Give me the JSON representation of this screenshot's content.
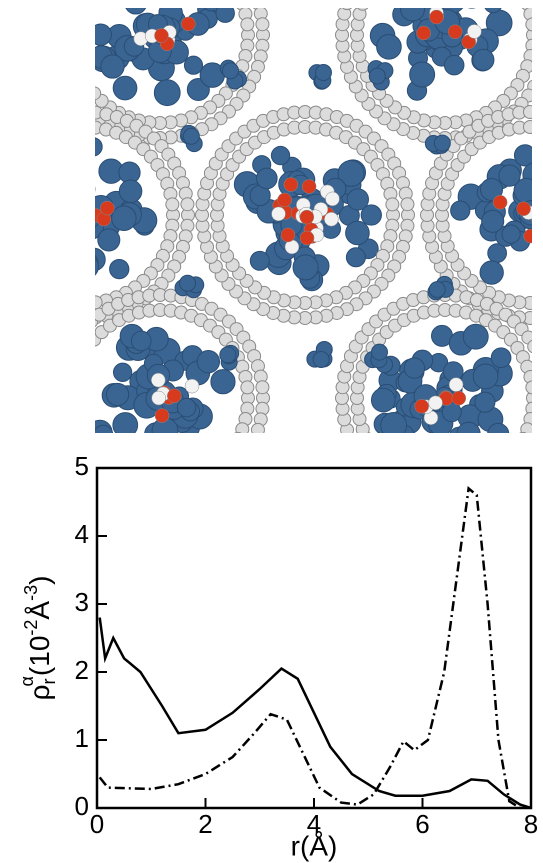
{
  "chart_data": {
    "type": "line",
    "xlabel": "r(Å)",
    "ylabel": [
      "ρ",
      "r",
      "α",
      "(10",
      "-2",
      "Å",
      "-3",
      ")"
    ],
    "xlim": [
      0,
      8
    ],
    "xticks": [
      0,
      2,
      4,
      6,
      8
    ],
    "ylim": [
      0,
      5
    ],
    "yticks": [
      0,
      1,
      2,
      3,
      4,
      5
    ],
    "series": [
      {
        "style": "solid",
        "color": "#000000",
        "x": [
          0.05,
          0.15,
          0.3,
          0.5,
          0.8,
          1.2,
          1.5,
          2.0,
          2.5,
          3.0,
          3.4,
          3.7,
          4.0,
          4.3,
          4.7,
          5.2,
          5.5,
          6.0,
          6.5,
          6.9,
          7.2,
          7.5,
          7.8,
          8.0
        ],
        "values": [
          2.8,
          2.2,
          2.5,
          2.2,
          2.0,
          1.5,
          1.1,
          1.15,
          1.4,
          1.75,
          2.05,
          1.9,
          1.4,
          0.9,
          0.5,
          0.25,
          0.18,
          0.18,
          0.25,
          0.42,
          0.4,
          0.2,
          0.05,
          0
        ]
      },
      {
        "style": "dashdot",
        "color": "#000000",
        "x": [
          0.05,
          0.2,
          1.0,
          1.5,
          2.0,
          2.5,
          2.9,
          3.2,
          3.5,
          3.8,
          4.1,
          4.5,
          4.8,
          5.1,
          5.4,
          5.65,
          5.85,
          6.1,
          6.4,
          6.65,
          6.85,
          7.0,
          7.2,
          7.4,
          7.6,
          7.8
        ],
        "values": [
          0.45,
          0.3,
          0.28,
          0.35,
          0.5,
          0.75,
          1.1,
          1.38,
          1.3,
          0.8,
          0.3,
          0.08,
          0.05,
          0.2,
          0.6,
          0.98,
          0.85,
          1.0,
          2.0,
          3.5,
          4.7,
          4.6,
          3.0,
          1.0,
          0.1,
          0
        ]
      }
    ]
  }
}
